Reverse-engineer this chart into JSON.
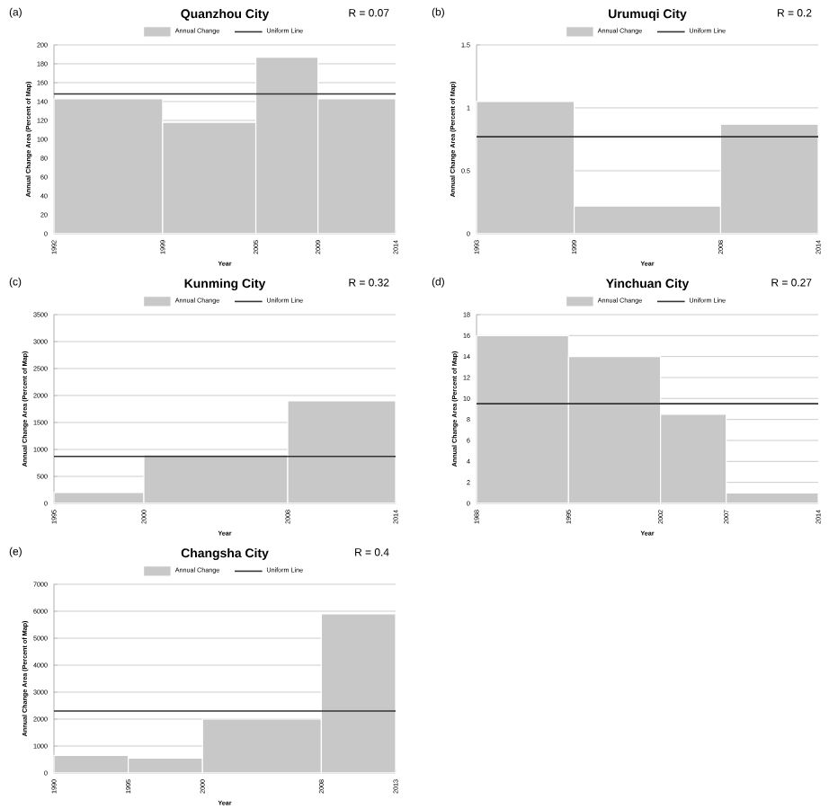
{
  "chart_data": [
    {
      "type": "histogram",
      "title": "Quanzhou City",
      "xlabel": "Year",
      "ylabel": "Annual Change Area (Percent of Map)",
      "bins": [
        1992,
        1999,
        2005,
        2009,
        2014
      ],
      "series": [
        {
          "name": "Annual Change",
          "color": "#c8c8c8",
          "values": [
            143,
            118,
            187,
            143
          ]
        }
      ],
      "xlim": [
        1992,
        2014
      ],
      "xticks": [
        1992,
        1999,
        2005,
        2009,
        2014
      ],
      "ylim": [
        0,
        200
      ],
      "yticks": [
        0,
        20,
        40,
        60,
        80,
        100,
        120,
        140,
        160,
        180,
        200
      ],
      "grid": "y",
      "legend": "top",
      "ref_lines": [
        {
          "axis": "y",
          "value": 148,
          "label": "Uniform Line",
          "color": "#333333"
        }
      ],
      "annotations": [
        "(a)",
        "R = 0.07"
      ]
    },
    {
      "type": "histogram",
      "title": "Urumuqi City",
      "xlabel": "Year",
      "ylabel": "Annual Change Area (Percent of Map)",
      "bins": [
        1993,
        1999,
        2008,
        2014
      ],
      "series": [
        {
          "name": "Annual Change",
          "color": "#c8c8c8",
          "values": [
            1.05,
            0.22,
            0.87
          ]
        }
      ],
      "xlim": [
        1993,
        2014
      ],
      "xticks": [
        1993,
        1999,
        2008,
        2014
      ],
      "ylim": [
        0,
        1.5
      ],
      "yticks": [
        0,
        0.5,
        1,
        1.5
      ],
      "grid": "y",
      "legend": "top",
      "ref_lines": [
        {
          "axis": "y",
          "value": 0.77,
          "label": "Uniform Line",
          "color": "#333333"
        }
      ],
      "annotations": [
        "(b)",
        "R = 0.2"
      ]
    },
    {
      "type": "histogram",
      "title": "Kunming City",
      "xlabel": "Year",
      "ylabel": "Annual Change Area (Percent of Map)",
      "bins": [
        1995,
        2000,
        2008,
        2014
      ],
      "series": [
        {
          "name": "Annual Change",
          "color": "#c8c8c8",
          "values": [
            200,
            900,
            1900
          ]
        }
      ],
      "xlim": [
        1995,
        2014
      ],
      "xticks": [
        1995,
        2000,
        2008,
        2014
      ],
      "ylim": [
        0,
        3500
      ],
      "yticks": [
        0,
        500,
        1000,
        1500,
        2000,
        2500,
        3000,
        3500
      ],
      "grid": "y",
      "legend": "top",
      "ref_lines": [
        {
          "axis": "y",
          "value": 870,
          "label": "Uniform Line",
          "color": "#333333"
        }
      ],
      "annotations": [
        "(c)",
        "R = 0.32"
      ]
    },
    {
      "type": "histogram",
      "title": "Yinchuan City",
      "xlabel": "Year",
      "ylabel": "Annual Change Area (Percent of Map)",
      "bins": [
        1988,
        1995,
        2002,
        2007,
        2014
      ],
      "series": [
        {
          "name": "Annual Change",
          "color": "#c8c8c8",
          "values": [
            16,
            14,
            8.5,
            1
          ]
        }
      ],
      "xlim": [
        1988,
        2014
      ],
      "xticks": [
        1988,
        1995,
        2002,
        2007,
        2014
      ],
      "ylim": [
        0,
        18
      ],
      "yticks": [
        0,
        2,
        4,
        6,
        8,
        10,
        12,
        14,
        16,
        18
      ],
      "grid": "y",
      "legend": "top",
      "ref_lines": [
        {
          "axis": "y",
          "value": 9.5,
          "label": "Uniform Line",
          "color": "#333333"
        }
      ],
      "annotations": [
        "(d)",
        "R = 0.27"
      ]
    },
    {
      "type": "histogram",
      "title": "Changsha City",
      "xlabel": "Year",
      "ylabel": "Annual Change Area (Percent of Map)",
      "bins": [
        1990,
        1995,
        2000,
        2008,
        2013
      ],
      "series": [
        {
          "name": "Annual Change",
          "color": "#c8c8c8",
          "values": [
            650,
            550,
            2000,
            5900
          ]
        }
      ],
      "xlim": [
        1990,
        2013
      ],
      "xticks": [
        1990,
        1995,
        2000,
        2008,
        2013
      ],
      "ylim": [
        0,
        7000
      ],
      "yticks": [
        0,
        1000,
        2000,
        3000,
        4000,
        5000,
        6000,
        7000
      ],
      "grid": "y",
      "legend": "top",
      "ref_lines": [
        {
          "axis": "y",
          "value": 2300,
          "label": "Uniform Line",
          "color": "#333333"
        }
      ],
      "annotations": [
        "(e)",
        "R = 0.4"
      ]
    }
  ]
}
